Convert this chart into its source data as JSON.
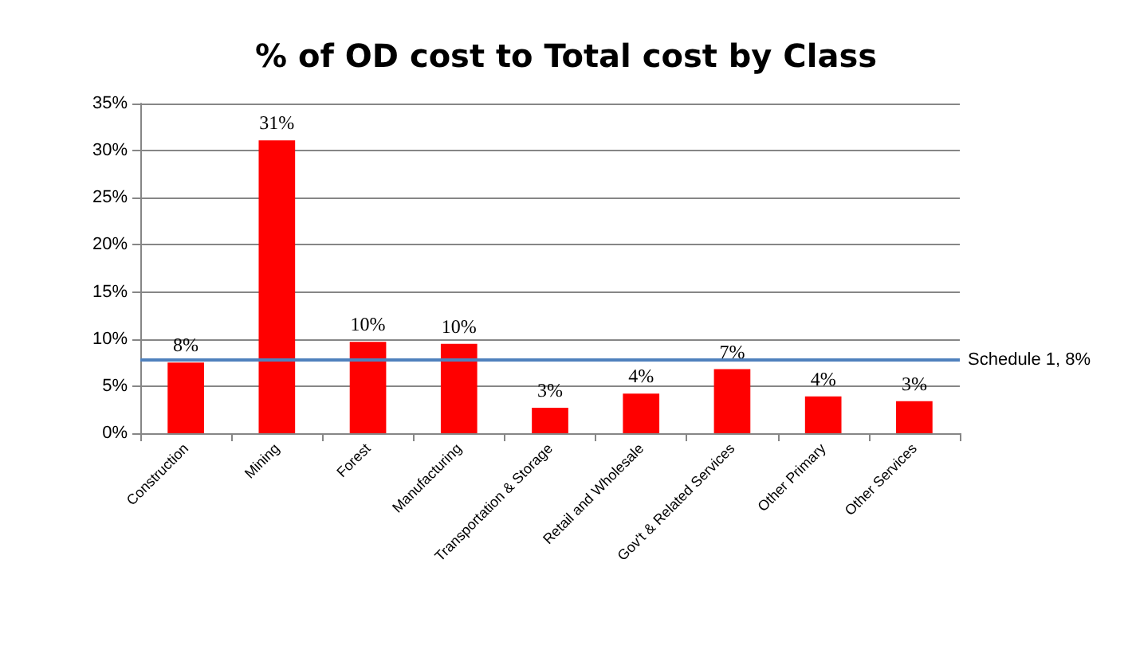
{
  "chart_data": {
    "type": "bar",
    "title": "% of OD cost to Total cost by Class",
    "categories": [
      "Construction",
      "Mining",
      "Forest",
      "Manufacturing",
      "Transportation & Storage",
      "Retail and Wholesale",
      "Gov't & Related Services",
      "Other Primary",
      "Other Services"
    ],
    "values": [
      7.5,
      31.1,
      9.7,
      9.5,
      2.7,
      4.2,
      6.8,
      3.9,
      3.4
    ],
    "value_labels": [
      "8%",
      "31%",
      "10%",
      "10%",
      "3%",
      "4%",
      "7%",
      "4%",
      "3%"
    ],
    "color": "#ff0000",
    "ylim": [
      0,
      35
    ],
    "yticks": [
      {
        "value": 0,
        "label": "0%"
      },
      {
        "value": 5,
        "label": "5%"
      },
      {
        "value": 10,
        "label": "10%"
      },
      {
        "value": 15,
        "label": "15%"
      },
      {
        "value": 20,
        "label": "20%"
      },
      {
        "value": 25,
        "label": "25%"
      },
      {
        "value": 30,
        "label": "30%"
      },
      {
        "value": 35,
        "label": "35%"
      }
    ],
    "ref_lines": [
      {
        "axis": "y",
        "value": 7.8,
        "label": "Schedule 1, 8%",
        "color": "#4f81bd"
      }
    ],
    "grid": "y"
  }
}
